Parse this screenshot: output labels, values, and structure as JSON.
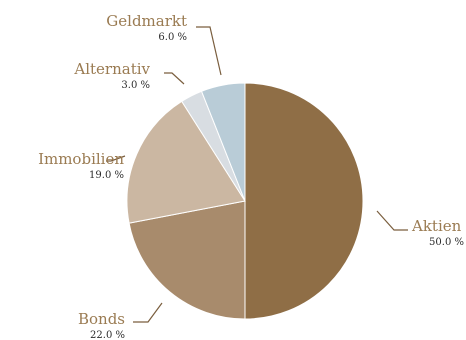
{
  "chart_data": {
    "type": "pie",
    "start": "12 o'clock",
    "direction": "clockwise",
    "slices": [
      {
        "label": "Aktien",
        "value": 50.0,
        "percent_text": "50.0 %",
        "color": "#8f6e46"
      },
      {
        "label": "Bonds",
        "value": 22.0,
        "percent_text": "22.0 %",
        "color": "#a88b6c"
      },
      {
        "label": "Immobilien",
        "value": 19.0,
        "percent_text": "19.0 %",
        "color": "#cbb7a2"
      },
      {
        "label": "Alternativ",
        "value": 3.0,
        "percent_text": "3.0 %",
        "color": "#d8dde2"
      },
      {
        "label": "Geldmarkt",
        "value": 6.0,
        "percent_text": "6.0 %",
        "color": "#b9ccd7"
      }
    ],
    "label_color": "#9a7b52",
    "leader_color": "#7a5e3e"
  }
}
